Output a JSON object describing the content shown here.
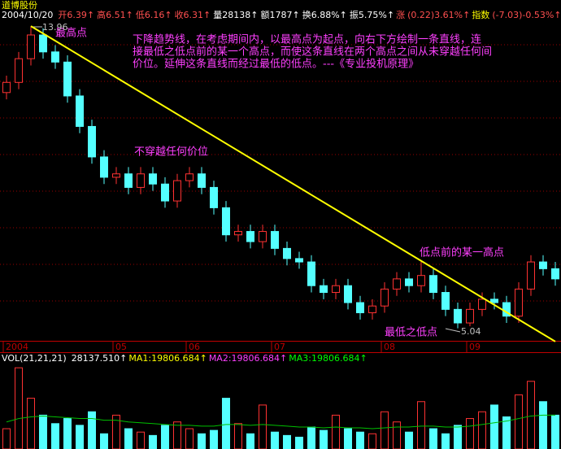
{
  "chart_data": {
    "type": "candlestick",
    "title": "道博股份",
    "date": "2004/10/20",
    "info": [
      {
        "text": "开6.39↑",
        "color": "#ff5050"
      },
      {
        "text": "高6.51↑",
        "color": "#ff5050"
      },
      {
        "text": "低6.16↑",
        "color": "#ff5050"
      },
      {
        "text": "收6.31↑",
        "color": "#ff5050"
      },
      {
        "text": "量28138↑",
        "color": "#ffffff"
      },
      {
        "text": "额1787↑",
        "color": "#ffffff"
      },
      {
        "text": "换6.88%↑",
        "color": "#ffffff"
      },
      {
        "text": "振5.75%↑",
        "color": "#ffffff"
      },
      {
        "text": "涨",
        "color": "#ff5050"
      },
      {
        "text": "(0.22)3.61%↑",
        "color": "#ff5050"
      },
      {
        "text": "指数",
        "color": "#ffff00"
      },
      {
        "text": "(-7.03)-0.53%↑",
        "color": "#ff5050"
      }
    ],
    "categories": [
      "2004",
      null,
      null,
      null,
      null,
      null,
      null,
      null,
      null,
      "05",
      null,
      null,
      null,
      null,
      null,
      "06",
      null,
      null,
      null,
      null,
      null,
      null,
      "07",
      null,
      null,
      null,
      null,
      null,
      null,
      null,
      null,
      "08",
      null,
      null,
      null,
      null,
      null,
      null,
      "09",
      null,
      null,
      null,
      null,
      null,
      null,
      null
    ],
    "open": [
      12.0,
      12.3,
      13.0,
      13.7,
      13.2,
      12.9,
      11.9,
      11.0,
      10.1,
      9.5,
      9.6,
      9.2,
      9.6,
      9.3,
      8.8,
      9.4,
      9.6,
      9.2,
      8.6,
      7.8,
      7.9,
      7.6,
      7.9,
      7.4,
      7.1,
      7.0,
      6.3,
      6.1,
      6.3,
      5.8,
      5.5,
      5.7,
      6.2,
      6.5,
      6.3,
      6.6,
      6.1,
      5.6,
      5.2,
      5.6,
      5.9,
      5.8,
      5.4,
      6.2,
      7.0,
      6.8
    ],
    "high": [
      12.5,
      13.2,
      13.96,
      13.9,
      13.4,
      13.1,
      12.1,
      11.2,
      10.3,
      9.8,
      9.8,
      9.8,
      9.8,
      9.5,
      9.6,
      9.8,
      9.8,
      9.4,
      8.8,
      8.1,
      8.1,
      8.1,
      8.1,
      7.6,
      7.3,
      7.2,
      6.5,
      6.5,
      6.5,
      6.0,
      5.9,
      6.4,
      6.7,
      6.7,
      7.05,
      6.8,
      6.3,
      5.8,
      5.8,
      6.1,
      6.1,
      6.0,
      6.4,
      7.2,
      7.2,
      7.0
    ],
    "low": [
      11.8,
      12.1,
      12.8,
      13.0,
      12.7,
      11.7,
      10.8,
      9.9,
      9.3,
      9.3,
      9.0,
      9.0,
      9.1,
      8.6,
      8.6,
      9.2,
      9.0,
      8.4,
      7.6,
      7.6,
      7.4,
      7.4,
      7.2,
      6.9,
      6.8,
      6.1,
      5.9,
      5.9,
      5.6,
      5.3,
      5.3,
      5.5,
      6.0,
      6.1,
      6.1,
      5.9,
      5.4,
      5.04,
      5.1,
      5.4,
      5.6,
      5.2,
      5.2,
      6.0,
      6.6,
      6.3
    ],
    "close": [
      12.3,
      13.0,
      13.7,
      13.2,
      12.9,
      11.9,
      11.0,
      10.1,
      9.5,
      9.6,
      9.2,
      9.6,
      9.3,
      8.8,
      9.4,
      9.6,
      9.2,
      8.6,
      7.8,
      7.9,
      7.6,
      7.9,
      7.4,
      7.1,
      7.0,
      6.3,
      6.1,
      6.3,
      5.8,
      5.5,
      5.7,
      6.2,
      6.5,
      6.3,
      6.6,
      6.1,
      5.6,
      5.2,
      5.6,
      5.9,
      5.8,
      5.4,
      6.2,
      7.0,
      6.8,
      6.5
    ],
    "up_color": "#ff3232",
    "down_color": "#54ffff",
    "ylim": [
      4.6,
      14.3
    ],
    "trendline": {
      "from": [
        2,
        13.96
      ],
      "to": [
        45,
        4.65
      ],
      "color": "#ffff00"
    },
    "volume": {
      "title": "VOL(21,21,21)",
      "current": "28137.510↑",
      "ma_labels": [
        {
          "text": "MA1:19806.684↑",
          "color": "#ffff00"
        },
        {
          "text": "MA2:19806.684↑",
          "color": "#ff40ff"
        },
        {
          "text": "MA3:19806.684↑",
          "color": "#00ff00"
        }
      ],
      "values": [
        12000,
        48000,
        30000,
        20000,
        15000,
        18000,
        14000,
        22000,
        9000,
        20000,
        12000,
        10000,
        8000,
        14000,
        16000,
        12000,
        9000,
        11000,
        30000,
        15000,
        9000,
        26000,
        10000,
        8000,
        7000,
        13000,
        11000,
        20000,
        12000,
        10000,
        9000,
        22000,
        16000,
        10000,
        28000,
        12000,
        9000,
        14000,
        18000,
        22000,
        26000,
        19000,
        32000,
        40000,
        28000,
        20000
      ],
      "ma": [
        16000,
        18000,
        19000,
        19500,
        19000,
        18500,
        18000,
        18000,
        17000,
        17000,
        16000,
        15500,
        15000,
        14500,
        14000,
        14000,
        13500,
        13500,
        14500,
        14500,
        14000,
        14500,
        14000,
        13500,
        13000,
        13000,
        12500,
        13000,
        12500,
        12500,
        12000,
        12500,
        13000,
        13000,
        13500,
        13500,
        13000,
        13000,
        13500,
        14500,
        15500,
        16500,
        18000,
        19500,
        20000,
        20000
      ],
      "ma_color": "#00c000",
      "ylim": [
        0,
        50000
      ]
    },
    "annotations": {
      "peak_label": "最高点",
      "peak_value": "13.96",
      "no_cross": "不穿越任何价位",
      "prior_high": "低点前的某一高点",
      "lowest_low": "最低之低点",
      "low_value": "5.04",
      "description": [
        "下降趋势线，在考虑期间内，以最高点为起点，向右下方绘制一条直线，连",
        "接最低之低点前的某一个高点，而使这条直线在两个高点之间从未穿越任何间",
        "价位。延伸这条直线而经过最低的低点。---《专业投机原理》"
      ]
    }
  }
}
